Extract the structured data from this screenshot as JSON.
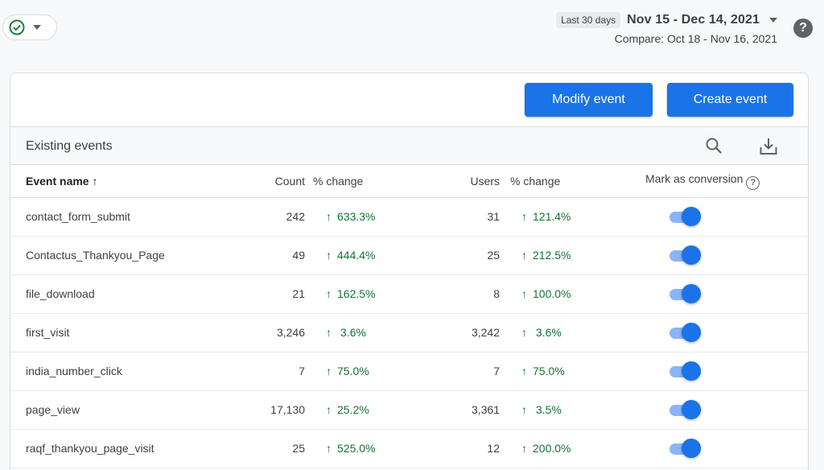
{
  "header": {
    "status_icon": "check-circle-icon",
    "range_chip": "Last 30 days",
    "date_range": "Nov 15 - Dec 14, 2021",
    "compare": "Compare: Oct 18 - Nov 16, 2021",
    "help_label": "?"
  },
  "actions": {
    "modify_label": "Modify event",
    "create_label": "Create event"
  },
  "section": {
    "title": "Existing events"
  },
  "table": {
    "columns": {
      "event_name": "Event name",
      "count": "Count",
      "count_change": "% change",
      "users": "Users",
      "users_change": "% change",
      "conversion": "Mark as conversion"
    },
    "sort_indicator": "↑",
    "change_arrow": "🠕",
    "rows": [
      {
        "name": "contact_form_submit",
        "count": "242",
        "count_change": "633.3%",
        "users": "31",
        "users_change": "121.4%",
        "conversion": true
      },
      {
        "name": "Contactus_Thankyou_Page",
        "count": "49",
        "count_change": "444.4%",
        "users": "25",
        "users_change": "212.5%",
        "conversion": true
      },
      {
        "name": "file_download",
        "count": "21",
        "count_change": "162.5%",
        "users": "8",
        "users_change": "100.0%",
        "conversion": true
      },
      {
        "name": "first_visit",
        "count": "3,246",
        "count_change": " 3.6%",
        "users": "3,242",
        "users_change": " 3.6%",
        "conversion": true
      },
      {
        "name": "india_number_click",
        "count": "7",
        "count_change": "75.0%",
        "users": "7",
        "users_change": "75.0%",
        "conversion": true
      },
      {
        "name": "page_view",
        "count": "17,130",
        "count_change": "25.2%",
        "users": "3,361",
        "users_change": " 3.5%",
        "conversion": true
      },
      {
        "name": "raqf_thankyou_page_visit",
        "count": "25",
        "count_change": "525.0%",
        "users": "12",
        "users_change": "200.0%",
        "conversion": true
      }
    ]
  },
  "colors": {
    "accent": "#1a73e8",
    "positive": "#137333"
  }
}
